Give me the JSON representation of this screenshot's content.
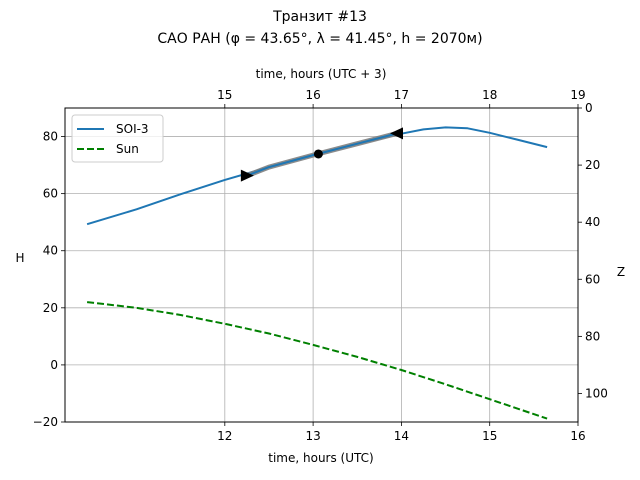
{
  "chart_data": {
    "type": "line",
    "title": "Транзит #13",
    "subtitle": "САО РАН (φ = 43.65°, λ = 41.45°, h = 2070м)",
    "xlabel": "time, hours (UTC)",
    "xlabel_top": "time, hours (UTC + 3)",
    "ylabel": "H",
    "ylabel_right": "Z",
    "xlim": [
      10.19,
      16.0
    ],
    "ylim": [
      -20,
      90
    ],
    "ylim_right": [
      110,
      0
    ],
    "x_ticks": [
      12,
      13,
      14,
      15,
      16
    ],
    "x_ticks_top": [
      15,
      16,
      17,
      18,
      19
    ],
    "y_ticks": [
      -20,
      0,
      20,
      40,
      60,
      80
    ],
    "y_ticks_right": [
      0,
      20,
      40,
      60,
      80,
      100
    ],
    "grid": true,
    "legend_position": "top-left",
    "series": [
      {
        "name": "SOI-3",
        "style": "solid",
        "color": "#1f77b4",
        "x": [
          10.44,
          11.0,
          11.5,
          12.0,
          12.5,
          13.0,
          13.5,
          14.0,
          14.25,
          14.5,
          14.75,
          15.0,
          15.3,
          15.65
        ],
        "y": [
          49.3,
          54.5,
          59.8,
          64.8,
          69.3,
          73.5,
          77.5,
          81.0,
          82.5,
          83.2,
          82.9,
          81.3,
          79.0,
          76.3
        ]
      },
      {
        "name": "Sun",
        "style": "dashed",
        "color": "#008000",
        "x": [
          10.44,
          11.0,
          11.5,
          12.0,
          12.5,
          13.0,
          13.5,
          14.0,
          14.5,
          15.0,
          15.65
        ],
        "y": [
          22.0,
          20.0,
          17.5,
          14.4,
          11.0,
          7.0,
          2.8,
          -1.8,
          -6.8,
          -12.0,
          -18.8
        ]
      }
    ],
    "transit": {
      "color": "#808080",
      "x": [
        12.25,
        12.5,
        13.0,
        13.5,
        13.95
      ],
      "y": [
        66.3,
        69.3,
        73.5,
        77.5,
        81.1
      ],
      "start": {
        "x": 12.25,
        "y": 66.3,
        "marker": "triangle-right"
      },
      "center": {
        "x": 13.06,
        "y": 73.9,
        "marker": "circle"
      },
      "end": {
        "x": 13.95,
        "y": 81.1,
        "marker": "triangle-left"
      }
    }
  }
}
